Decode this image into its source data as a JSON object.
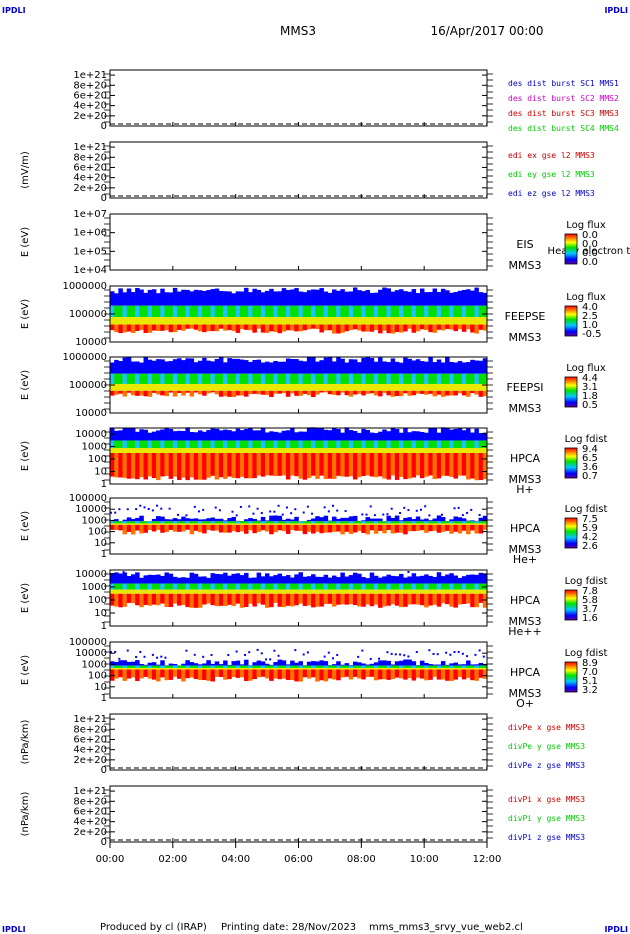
{
  "header": {
    "corner_top_left": "IPDLI",
    "corner_top_right": "IPDLI",
    "corner_bottom_left": "IPDLI",
    "corner_bottom_right": "IPDLI",
    "title": "MMS3",
    "date": "16/Apr/2017 00:00"
  },
  "footer": {
    "produced_by": "Produced by cl (IRAP)",
    "printing_date": "Printing date: 28/Nov/2023",
    "script_name": "mms_mms3_srvy_vue_web2.cl"
  },
  "colors": {
    "spectro_low": "#0000ff",
    "spectro_mid": "#00e000",
    "spectro_high": "#ff0000"
  },
  "chart_data": [
    {
      "type": "line",
      "panel": "des-dist-burst",
      "ylabel": "",
      "yticks": [
        "1e+21",
        "8e+20",
        "6e+20",
        "4e+20",
        "2e+20",
        "0"
      ],
      "tick_values": [
        1e+21,
        8e+20,
        6e+20,
        4e+20,
        2e+20,
        0
      ],
      "ylim": [
        0,
        1.1e+21
      ],
      "legend": [
        {
          "name": "des dist burst SC1 MMS1",
          "color": "#0000cc"
        },
        {
          "name": "des dist burst SC2 MMS2",
          "color": "#cc00cc"
        },
        {
          "name": "des dist burst SC3 MMS3",
          "color": "#cc0000"
        },
        {
          "name": "des dist burst SC4 MMS4",
          "color": "#00cc00"
        }
      ],
      "series": [
        {
          "values": [
            0,
            0
          ]
        }
      ]
    },
    {
      "type": "line",
      "panel": "edi-e-gse",
      "ylabel": "(mV/m)",
      "yticks": [
        "1e+21",
        "8e+20",
        "6e+20",
        "4e+20",
        "2e+20",
        "0"
      ],
      "tick_values": [
        1e+21,
        8e+20,
        6e+20,
        4e+20,
        2e+20,
        0
      ],
      "ylim": [
        0,
        1.1e+21
      ],
      "legend": [
        {
          "name": "edi ex gse l2 MMS3",
          "color": "#cc0000"
        },
        {
          "name": "edi ey gse l2 MMS3",
          "color": "#00cc00"
        },
        {
          "name": "edi ez gse l2 MMS3",
          "color": "#0000cc"
        }
      ],
      "series": [
        {
          "values": [
            0,
            0
          ]
        }
      ]
    },
    {
      "type": "heatmap",
      "panel": "eis",
      "ylabel": "E (eV)",
      "yticks": [
        "1e+07",
        "1e+06",
        "1e+05",
        "1e+04"
      ],
      "tick_values": [
        10000000,
        1000000,
        100000,
        10000
      ],
      "ylim": [
        10000,
        10000000
      ],
      "instrument": "EIS",
      "spacecraft": "MMS3",
      "species": "",
      "overlay_label": "Heavy electron to",
      "colorbar_title": "Log flux",
      "colorbar_ticks": [
        "0.0",
        "0.0",
        "0.0",
        "0.0"
      ],
      "profile": null
    },
    {
      "type": "heatmap",
      "panel": "feepse",
      "ylabel": "E (eV)",
      "yticks": [
        "1000000",
        "100000",
        "10000"
      ],
      "tick_values": [
        1000000,
        100000,
        10000
      ],
      "ylim": [
        10000,
        1000000
      ],
      "instrument": "FEEPSE",
      "spacecraft": "MMS3",
      "species": "",
      "overlay_label": "",
      "colorbar_title": "Log flux",
      "colorbar_ticks": [
        "4.0",
        "2.5",
        "1.0",
        "-0.5"
      ],
      "profile": {
        "bottom": 30000,
        "top": 700000,
        "red_top": 42000,
        "speckle": 0.35
      }
    },
    {
      "type": "heatmap",
      "panel": "feepsi",
      "ylabel": "E (eV)",
      "yticks": [
        "1000000",
        "100000",
        "10000"
      ],
      "tick_values": [
        1000000,
        100000,
        10000
      ],
      "ylim": [
        10000,
        1000000
      ],
      "instrument": "FEEPSI",
      "spacecraft": "MMS3",
      "species": "",
      "overlay_label": "",
      "colorbar_title": "Log flux",
      "colorbar_ticks": [
        "4.4",
        "3.1",
        "1.8",
        "0.5"
      ],
      "profile": {
        "bottom": 55000,
        "top": 800000,
        "red_top": 62000,
        "speckle": 0.6
      }
    },
    {
      "type": "heatmap",
      "panel": "hpca-h",
      "ylabel": "E (eV)",
      "yticks": [
        "10000",
        "1000",
        "100",
        "10",
        "1"
      ],
      "tick_values": [
        10000,
        1000,
        100,
        10,
        1
      ],
      "ylim": [
        1,
        30000
      ],
      "instrument": "HPCA",
      "spacecraft": "MMS3",
      "species": "H+",
      "overlay_label": "",
      "colorbar_title": "Log fdist",
      "colorbar_ticks": [
        "9.4",
        "6.5",
        "3.6",
        "0.7"
      ],
      "profile": {
        "bottom": 5,
        "top": 20000,
        "red_top": 300,
        "speckle": 0.05
      }
    },
    {
      "type": "heatmap",
      "panel": "hpca-he",
      "ylabel": "E (eV)",
      "yticks": [
        "100000",
        "10000",
        "1000",
        "100",
        "10",
        "1"
      ],
      "tick_values": [
        100000,
        10000,
        1000,
        100,
        10,
        1
      ],
      "ylim": [
        1,
        100000
      ],
      "instrument": "HPCA",
      "spacecraft": "MMS3",
      "species": "He+",
      "overlay_label": "",
      "colorbar_title": "Log fdist",
      "colorbar_ticks": [
        "7.5",
        "5.9",
        "4.2",
        "2.6"
      ],
      "profile": {
        "bottom": 150,
        "top": 1500,
        "red_top": 400,
        "speckle": 0.7
      }
    },
    {
      "type": "heatmap",
      "panel": "hpca-he2",
      "ylabel": "E (eV)",
      "yticks": [
        "10000",
        "1000",
        "100",
        "10",
        "1"
      ],
      "tick_values": [
        10000,
        1000,
        100,
        10,
        1
      ],
      "ylim": [
        1,
        20000
      ],
      "instrument": "HPCA",
      "spacecraft": "MMS3",
      "species": "He++",
      "overlay_label": "",
      "colorbar_title": "Log fdist",
      "colorbar_ticks": [
        "7.8",
        "5.8",
        "3.7",
        "1.6"
      ],
      "profile": {
        "bottom": 60,
        "top": 8000,
        "red_top": 300,
        "speckle": 0.2
      }
    },
    {
      "type": "heatmap",
      "panel": "hpca-o",
      "ylabel": "E (eV)",
      "yticks": [
        "100000",
        "10000",
        "1000",
        "100",
        "10",
        "1"
      ],
      "tick_values": [
        100000,
        10000,
        1000,
        100,
        10,
        1
      ],
      "ylim": [
        1,
        100000
      ],
      "instrument": "HPCA",
      "spacecraft": "MMS3",
      "species": "O+",
      "overlay_label": "",
      "colorbar_title": "Log fdist",
      "colorbar_ticks": [
        "8.9",
        "7.0",
        "5.1",
        "3.2"
      ],
      "profile": {
        "bottom": 80,
        "top": 1500,
        "red_top": 350,
        "speckle": 0.6
      }
    },
    {
      "type": "line",
      "panel": "divpe",
      "ylabel": "(nPa/km)",
      "yticks": [
        "1e+21",
        "8e+20",
        "6e+20",
        "4e+20",
        "2e+20",
        "0"
      ],
      "tick_values": [
        1e+21,
        8e+20,
        6e+20,
        4e+20,
        2e+20,
        0
      ],
      "ylim": [
        0,
        1.1e+21
      ],
      "legend": [
        {
          "name": "divPe x gse MMS3",
          "color": "#cc0000"
        },
        {
          "name": "divPe y gse MMS3",
          "color": "#00cc00"
        },
        {
          "name": "divPe z gse MMS3",
          "color": "#0000cc"
        }
      ],
      "series": [
        {
          "values": [
            0,
            0
          ]
        }
      ]
    },
    {
      "type": "line",
      "panel": "divpi",
      "ylabel": "(nPa/km)",
      "yticks": [
        "1e+21",
        "8e+20",
        "6e+20",
        "4e+20",
        "2e+20",
        "0"
      ],
      "tick_values": [
        1e+21,
        8e+20,
        6e+20,
        4e+20,
        2e+20,
        0
      ],
      "ylim": [
        0,
        1.1e+21
      ],
      "legend": [
        {
          "name": "divPi x gse MMS3",
          "color": "#cc0000"
        },
        {
          "name": "divPi y gse MMS3",
          "color": "#00cc00"
        },
        {
          "name": "divPi z gse MMS3",
          "color": "#0000cc"
        }
      ],
      "series": [
        {
          "values": [
            0,
            0
          ]
        }
      ]
    }
  ],
  "x_axis": {
    "ticks": [
      "00:00",
      "02:00",
      "04:00",
      "06:00",
      "08:00",
      "10:00",
      "12:00"
    ],
    "tick_hours": [
      0,
      2,
      4,
      6,
      8,
      10,
      12
    ],
    "xlim": [
      0,
      12
    ]
  }
}
